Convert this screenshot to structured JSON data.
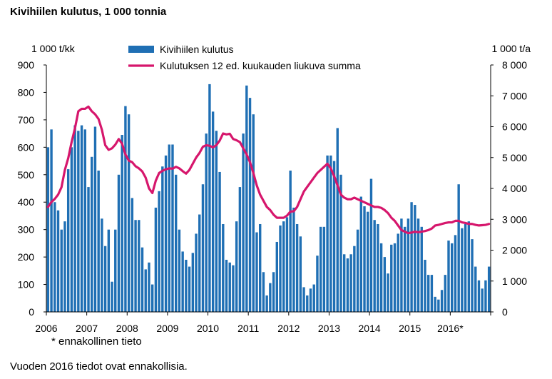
{
  "title": "Kivihiilen kulutus, 1 000 tonnia",
  "footnote": "Vuoden 2016 tiedot ovat ennakollisia.",
  "prelim_note": "* ennakollinen tieto",
  "colors": {
    "bar": "#1f6fb4",
    "line": "#d6166c",
    "axis": "#000000"
  },
  "chart_data": {
    "type": "bar",
    "x_labels": [
      "2006",
      "2007",
      "2008",
      "2009",
      "2010",
      "2011",
      "2012",
      "2013",
      "2014",
      "2015",
      "2016*"
    ],
    "y_left_label": "1 000 t/kk",
    "y_right_label": "1 000 t/a",
    "ylim_left": [
      0,
      900
    ],
    "ylim_right": [
      0,
      8000
    ],
    "y_left_ticks": [
      "0",
      "100",
      "200",
      "300",
      "400",
      "500",
      "600",
      "700",
      "800",
      "900"
    ],
    "y_right_ticks": [
      "0",
      "1 000",
      "2 000",
      "3 000",
      "4 000",
      "5 000",
      "6 000",
      "7 000",
      "8 000"
    ],
    "grid": false,
    "legend_position": "top",
    "series": [
      {
        "name": "Kivihiilen kulutus",
        "type": "bar",
        "axis": "left",
        "values": [
          600,
          665,
          400,
          370,
          300,
          330,
          520,
          600,
          680,
          660,
          680,
          665,
          455,
          565,
          675,
          515,
          340,
          240,
          300,
          110,
          300,
          500,
          645,
          750,
          720,
          415,
          335,
          335,
          235,
          155,
          180,
          100,
          380,
          440,
          530,
          570,
          610,
          610,
          500,
          300,
          220,
          190,
          165,
          215,
          285,
          355,
          465,
          650,
          830,
          730,
          660,
          510,
          320,
          190,
          180,
          170,
          330,
          455,
          650,
          825,
          780,
          720,
          290,
          320,
          145,
          60,
          105,
          145,
          255,
          315,
          330,
          345,
          515,
          380,
          320,
          275,
          90,
          60,
          85,
          100,
          205,
          310,
          310,
          570,
          570,
          550,
          670,
          500,
          210,
          195,
          210,
          240,
          300,
          420,
          385,
          365,
          485,
          335,
          320,
          250,
          200,
          140,
          245,
          250,
          285,
          340,
          310,
          340,
          400,
          390,
          340,
          310,
          190,
          135,
          135,
          55,
          45,
          80,
          135,
          260,
          250,
          280,
          465,
          305,
          320,
          330,
          265,
          165,
          115,
          85,
          115,
          165
        ]
      },
      {
        "name": "Kulutuksen 12 ed. kuukauden liukuva summa",
        "type": "line",
        "axis": "right",
        "values": [
          3400,
          3560,
          3660,
          3800,
          4040,
          4600,
          4980,
          5500,
          5950,
          6500,
          6580,
          6580,
          6650,
          6500,
          6400,
          6250,
          5900,
          5400,
          5250,
          5300,
          5420,
          5600,
          5450,
          5100,
          4900,
          4850,
          4720,
          4650,
          4550,
          4350,
          4000,
          3850,
          4250,
          4500,
          4570,
          4620,
          4650,
          4640,
          4700,
          4650,
          4560,
          4480,
          4600,
          4800,
          5000,
          5150,
          5350,
          5400,
          5380,
          5330,
          5400,
          5550,
          5780,
          5750,
          5770,
          5600,
          5560,
          5500,
          5300,
          5100,
          4850,
          4500,
          4100,
          3800,
          3600,
          3400,
          3300,
          3150,
          3050,
          3050,
          3050,
          3120,
          3250,
          3260,
          3400,
          3650,
          3900,
          4050,
          4200,
          4350,
          4500,
          4600,
          4700,
          4800,
          4650,
          4400,
          4100,
          3800,
          3700,
          3650,
          3650,
          3700,
          3650,
          3600,
          3550,
          3500,
          3450,
          3400,
          3400,
          3370,
          3300,
          3200,
          3050,
          2950,
          2800,
          2650,
          2600,
          2550,
          2570,
          2600,
          2580,
          2600,
          2620,
          2650,
          2700,
          2800,
          2820,
          2850,
          2880,
          2900,
          2900,
          2950,
          2950,
          2900,
          2880,
          2850,
          2850,
          2820,
          2800,
          2810,
          2820,
          2850
        ]
      }
    ]
  }
}
